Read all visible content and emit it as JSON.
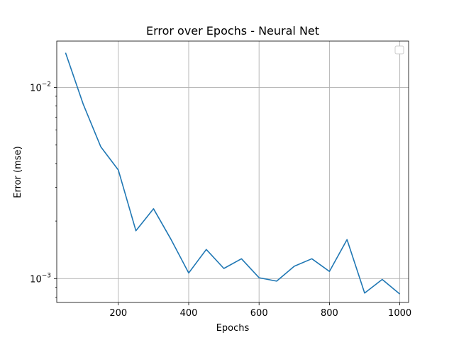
{
  "chart_data": {
    "type": "line",
    "title": "Error over Epochs - Neural Net",
    "xlabel": "Epochs",
    "ylabel": "Error (mse)",
    "yscale": "log",
    "xlim": [
      25,
      1025
    ],
    "ylim": [
      0.00075,
      0.0175
    ],
    "xticks": [
      200,
      400,
      600,
      800,
      1000
    ],
    "yticks": [
      {
        "value": 0.01,
        "base": "10",
        "exp": "−2"
      },
      {
        "value": 0.001,
        "base": "10",
        "exp": "−3"
      }
    ],
    "grid": true,
    "legend": {
      "placement": "top-right",
      "entries": []
    },
    "series": [
      {
        "color": "#1f77b4",
        "x": [
          50,
          100,
          150,
          200,
          250,
          300,
          350,
          400,
          450,
          500,
          550,
          600,
          650,
          700,
          750,
          800,
          850,
          900,
          950,
          1000
        ],
        "y": [
          0.0152,
          0.0082,
          0.0049,
          0.0037,
          0.00178,
          0.00232,
          0.0016,
          0.00107,
          0.00142,
          0.00113,
          0.00127,
          0.00101,
          0.00097,
          0.00116,
          0.00127,
          0.00109,
          0.0016,
          0.00084,
          0.00099,
          0.00083
        ]
      }
    ]
  }
}
